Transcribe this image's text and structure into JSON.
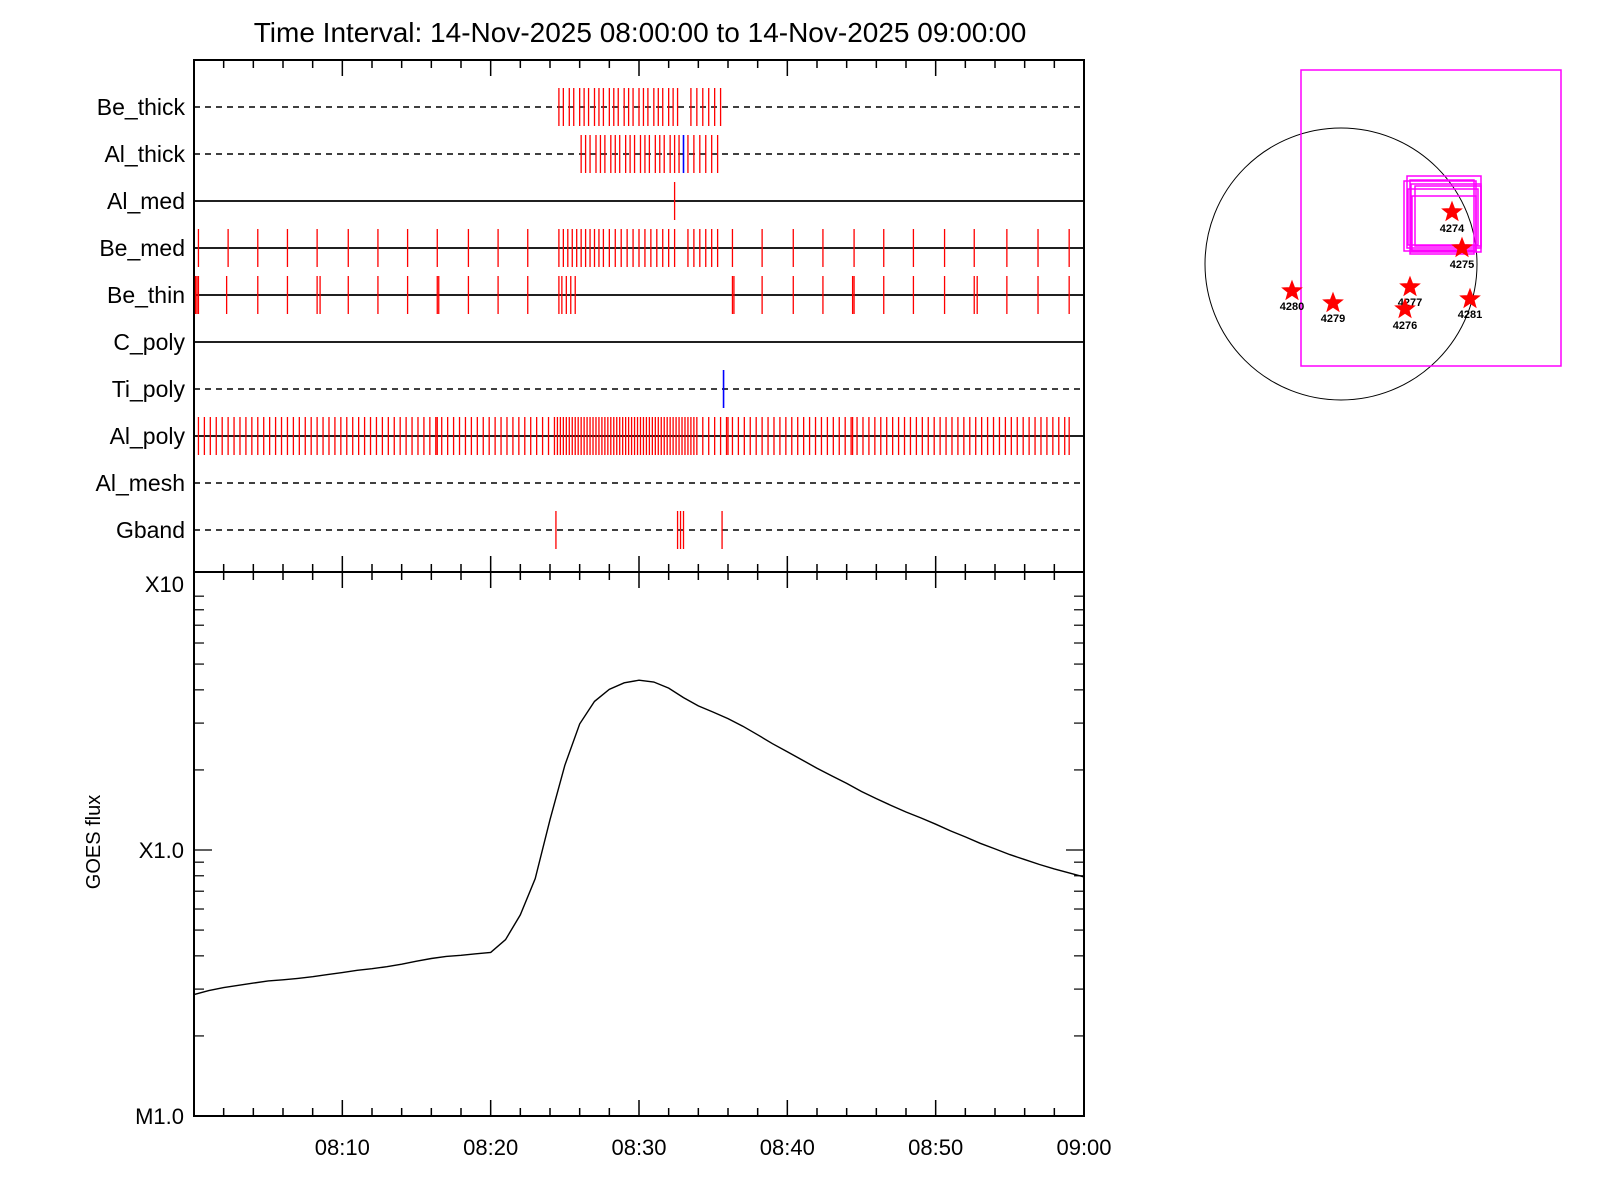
{
  "title": "Time Interval: 14-Nov-2025 08:00:00 to 14-Nov-2025 09:00:00",
  "chart_data": [
    {
      "type": "scatter",
      "name_note": "attenuator/filter event timeline",
      "x_unit": "minutes after 08:00",
      "xlim": [
        0,
        60
      ],
      "channels": [
        {
          "label": "Be_thick",
          "line": "dashed",
          "red": [
            24.6,
            24.9,
            25.3,
            25.6,
            26.0,
            26.3,
            26.6,
            27.0,
            27.3,
            27.6,
            28.0,
            28.3,
            28.6,
            29.0,
            29.3,
            29.6,
            30.0,
            30.3,
            30.6,
            31.0,
            31.3,
            31.6,
            32.0,
            32.3,
            32.6,
            33.5,
            33.9,
            34.3,
            34.7,
            35.1,
            35.5
          ],
          "blue": []
        },
        {
          "label": "Al_thick",
          "line": "dashed",
          "red": [
            26.1,
            26.4,
            26.7,
            27.1,
            27.4,
            27.7,
            28.1,
            28.4,
            28.7,
            29.1,
            29.4,
            29.7,
            30.1,
            30.4,
            30.7,
            31.1,
            31.4,
            31.7,
            32.1,
            32.4,
            32.7,
            33.3,
            33.7,
            34.1,
            34.5,
            34.9,
            35.3
          ],
          "blue": [
            33.0
          ]
        },
        {
          "label": "Al_med",
          "line": "solid",
          "red": [
            32.4
          ],
          "blue": []
        },
        {
          "label": "Be_med",
          "line": "solid",
          "red": [
            0.3,
            2.3,
            4.3,
            6.3,
            8.3,
            10.4,
            12.4,
            14.4,
            16.4,
            18.5,
            20.5,
            22.5,
            24.6,
            24.9,
            25.2,
            25.5,
            25.8,
            26.1,
            26.4,
            26.7,
            27.0,
            27.3,
            27.6,
            28.0,
            28.4,
            28.8,
            29.2,
            29.6,
            30.0,
            30.4,
            30.8,
            31.2,
            31.6,
            32.0,
            32.4,
            33.3,
            33.7,
            34.1,
            34.5,
            34.9,
            35.3,
            36.3,
            38.3,
            40.4,
            42.4,
            44.5,
            46.5,
            48.5,
            50.6,
            52.6,
            54.8,
            56.9,
            59.0
          ],
          "blue": []
        },
        {
          "label": "Be_thin",
          "line": "solid",
          "red": [
            0.1,
            0.2,
            0.3,
            2.2,
            4.3,
            6.3,
            8.3,
            8.5,
            10.4,
            12.4,
            14.4,
            16.4,
            16.5,
            18.5,
            20.5,
            22.5,
            24.6,
            24.8,
            25.1,
            25.4,
            25.7,
            36.3,
            36.4,
            38.3,
            40.4,
            42.4,
            44.4,
            44.5,
            46.5,
            48.5,
            50.6,
            52.6,
            52.8,
            54.8,
            56.9,
            59.0
          ],
          "blue": []
        },
        {
          "label": "C_poly",
          "line": "solid",
          "red": [],
          "blue": []
        },
        {
          "label": "Ti_poly",
          "line": "dashed",
          "red": [],
          "blue": [
            35.7
          ]
        },
        {
          "label": "Al_poly",
          "line": "solid",
          "red": [
            0.3,
            0.7,
            1.1,
            1.5,
            1.9,
            2.3,
            2.7,
            3.1,
            3.5,
            3.9,
            4.3,
            4.7,
            5.1,
            5.5,
            5.9,
            6.3,
            6.7,
            7.1,
            7.5,
            7.9,
            8.3,
            8.7,
            9.1,
            9.5,
            9.9,
            10.3,
            10.7,
            11.1,
            11.5,
            11.9,
            12.3,
            12.7,
            13.1,
            13.5,
            13.9,
            14.3,
            14.7,
            15.1,
            15.5,
            15.9,
            16.3,
            16.4,
            16.7,
            17.1,
            17.5,
            17.9,
            18.3,
            18.7,
            19.1,
            19.5,
            19.9,
            20.3,
            20.7,
            21.1,
            21.5,
            21.9,
            22.3,
            22.7,
            23.1,
            23.5,
            23.9,
            24.3,
            24.5,
            24.7,
            24.9,
            25.1,
            25.3,
            25.5,
            25.7,
            25.9,
            26.1,
            26.3,
            26.5,
            26.7,
            26.9,
            27.1,
            27.3,
            27.5,
            27.7,
            27.9,
            28.1,
            28.3,
            28.5,
            28.7,
            28.9,
            29.1,
            29.3,
            29.5,
            29.7,
            29.9,
            30.1,
            30.3,
            30.5,
            30.7,
            30.9,
            31.1,
            31.3,
            31.5,
            31.7,
            31.9,
            32.1,
            32.3,
            32.5,
            32.7,
            32.9,
            33.1,
            33.3,
            33.5,
            33.7,
            33.9,
            34.3,
            34.7,
            35.1,
            35.5,
            35.9,
            36.0,
            36.3,
            36.7,
            37.1,
            37.5,
            37.9,
            38.3,
            38.7,
            39.1,
            39.5,
            39.9,
            40.3,
            40.7,
            41.1,
            41.5,
            41.9,
            42.3,
            42.7,
            43.1,
            43.5,
            43.9,
            44.3,
            44.4,
            44.7,
            45.1,
            45.5,
            45.9,
            46.3,
            46.7,
            47.1,
            47.5,
            47.9,
            48.3,
            48.7,
            49.1,
            49.5,
            49.9,
            50.3,
            50.7,
            51.1,
            51.5,
            51.9,
            52.3,
            52.7,
            53.1,
            53.5,
            53.9,
            54.3,
            54.7,
            55.1,
            55.5,
            55.9,
            56.3,
            56.7,
            57.1,
            57.5,
            57.9,
            58.3,
            58.7,
            59.0
          ],
          "blue": []
        },
        {
          "label": "Al_mesh",
          "line": "dashed",
          "red": [],
          "blue": []
        },
        {
          "label": "Gband",
          "line": "dashed",
          "red": [
            24.4,
            32.6,
            32.8,
            33.0,
            35.6
          ],
          "blue": []
        }
      ]
    },
    {
      "type": "line",
      "ylabel": "GOES flux",
      "yscale": "log",
      "ylim": [
        1e-05,
        0.001
      ],
      "yticks": [
        {
          "value": 1e-05,
          "label": "M1.0"
        },
        {
          "value": 0.0001,
          "label": "X1.0"
        },
        {
          "value": 0.001,
          "label": "X10"
        }
      ],
      "xlim": [
        0,
        60
      ],
      "xtick_labels": [
        {
          "value": 10,
          "label": "08:10"
        },
        {
          "value": 20,
          "label": "08:20"
        },
        {
          "value": 30,
          "label": "08:30"
        },
        {
          "value": 40,
          "label": "08:40"
        },
        {
          "value": 50,
          "label": "08:50"
        },
        {
          "value": 60,
          "label": "09:00"
        }
      ],
      "x": [
        0,
        1,
        2,
        3,
        4,
        5,
        6,
        7,
        8,
        9,
        10,
        11,
        12,
        13,
        14,
        15,
        16,
        17,
        18,
        19,
        20,
        21,
        22,
        23,
        24,
        25,
        26,
        27,
        28,
        29,
        30,
        31,
        32,
        33,
        34,
        35,
        36,
        37,
        38,
        39,
        40,
        41,
        42,
        43,
        44,
        45,
        46,
        47,
        48,
        49,
        50,
        51,
        52,
        53,
        54,
        55,
        56,
        57,
        58,
        59,
        60
      ],
      "values": [
        2.86e-05,
        2.96e-05,
        3.04e-05,
        3.1e-05,
        3.16e-05,
        3.22e-05,
        3.25e-05,
        3.29e-05,
        3.34e-05,
        3.4e-05,
        3.46e-05,
        3.53e-05,
        3.58e-05,
        3.64e-05,
        3.72e-05,
        3.82e-05,
        3.91e-05,
        3.98e-05,
        4.02e-05,
        4.07e-05,
        4.12e-05,
        4.6e-05,
        5.7e-05,
        7.8e-05,
        0.00013,
        0.000208,
        0.000298,
        0.000362,
        0.000402,
        0.000425,
        0.000435,
        0.000428,
        0.000406,
        0.000374,
        0.000348,
        0.00033,
        0.000312,
        0.000292,
        0.000271,
        0.000251,
        0.000234,
        0.000218,
        0.000203,
        0.00019,
        0.000178,
        0.000166,
        0.000156,
        0.000147,
        0.000139,
        0.000132,
        0.000125,
        0.000118,
        0.000112,
        0.000106,
        0.000101,
        9.61e-05,
        9.2e-05,
        8.82e-05,
        8.49e-05,
        8.2e-05,
        7.92e-05
      ]
    },
    {
      "type": "scatter",
      "note": "solar disk locator",
      "colors": {
        "disk": "#000000",
        "box": "#ff00ff",
        "star": "#ff0000"
      },
      "ar_labels": [
        "4274",
        "4275",
        "4277",
        "4276",
        "4280",
        "4279",
        "4281"
      ]
    }
  ]
}
